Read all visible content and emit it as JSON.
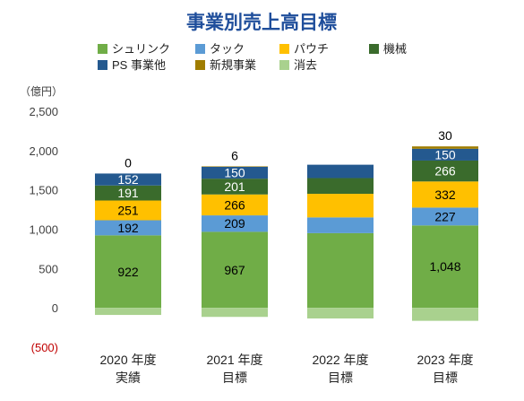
{
  "chart_data": {
    "type": "bar",
    "stacked": true,
    "title": "事業別売上高目標",
    "unit_label": "（億円）",
    "categories": [
      {
        "line1": "2020 年度",
        "line2": "実績"
      },
      {
        "line1": "2021 年度",
        "line2": "目標"
      },
      {
        "line1": "2022 年度",
        "line2": "目標"
      },
      {
        "line1": "2023 年度",
        "line2": "目標"
      }
    ],
    "ylim": [
      -500,
      2500
    ],
    "yticks": [
      {
        "value": 2500,
        "label": "2,500"
      },
      {
        "value": 2000,
        "label": "2,000"
      },
      {
        "value": 1500,
        "label": "1,500"
      },
      {
        "value": 1000,
        "label": "1,000"
      },
      {
        "value": 500,
        "label": "500"
      },
      {
        "value": 0,
        "label": "0"
      },
      {
        "value": -500,
        "label": "(500)"
      }
    ],
    "grid": false,
    "legend_position": "top",
    "series": [
      {
        "name": "シュリンク",
        "color": "#70ad47",
        "values": [
          922,
          967,
          950,
          1048
        ],
        "labels": [
          "922",
          "967",
          "",
          "1,048"
        ],
        "label_color": "#000000"
      },
      {
        "name": "タック",
        "color": "#5b9bd5",
        "values": [
          192,
          209,
          200,
          227
        ],
        "labels": [
          "192",
          "209",
          "",
          "227"
        ],
        "label_color": "#000000"
      },
      {
        "name": "パウチ",
        "color": "#ffc000",
        "values": [
          251,
          266,
          300,
          332
        ],
        "labels": [
          "251",
          "266",
          "",
          "332"
        ],
        "label_color": "#000000"
      },
      {
        "name": "機械",
        "color": "#3a6b2c",
        "values": [
          191,
          201,
          200,
          266
        ],
        "labels": [
          "191",
          "201",
          "",
          "266"
        ],
        "label_color": "#ffffff"
      },
      {
        "name": "PS 事業他",
        "color": "#24598f",
        "values": [
          152,
          150,
          170,
          150
        ],
        "labels": [
          "152",
          "150",
          "",
          "150"
        ],
        "label_color": "#ffffff"
      },
      {
        "name": "新規事業",
        "color": "#a07d00",
        "values": [
          0,
          6,
          0,
          30
        ],
        "labels": [
          "0",
          "6",
          "",
          "30"
        ],
        "label_color": "#000000",
        "label_above": true
      },
      {
        "name": "消去",
        "color": "#a9d18e",
        "values": [
          -90,
          -115,
          -135,
          -165
        ],
        "labels": [
          "",
          "",
          "",
          ""
        ],
        "label_color": "#000000"
      }
    ]
  }
}
